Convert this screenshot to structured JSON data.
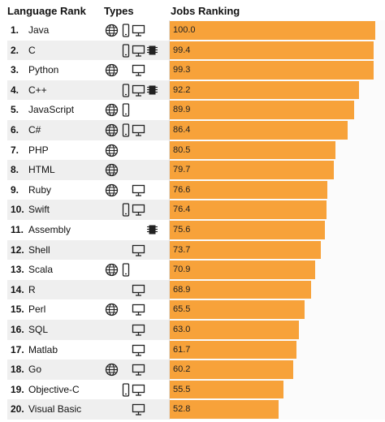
{
  "headers": {
    "language_rank": "Language Rank",
    "types": "Types",
    "jobs_ranking": "Jobs Ranking"
  },
  "colors": {
    "bar": "#f7a23a",
    "even_row": "#efefef"
  },
  "type_icons": {
    "web": "globe-icon",
    "mobile": "mobile-phone-icon",
    "enterprise": "desktop-monitor-icon",
    "embedded": "chip-icon"
  },
  "chart_data": {
    "type": "bar",
    "orientation": "horizontal",
    "categories": [
      "Java",
      "C",
      "Python",
      "C++",
      "JavaScript",
      "C#",
      "PHP",
      "HTML",
      "Ruby",
      "Swift",
      "Assembly",
      "Shell",
      "Scala",
      "R",
      "Perl",
      "SQL",
      "Matlab",
      "Go",
      "Objective-C",
      "Visual Basic"
    ],
    "series": [
      {
        "values": [
          100.0,
          99.4,
          99.3,
          92.2,
          89.9,
          86.4,
          80.5,
          79.7,
          76.6,
          76.4,
          75.6,
          73.7,
          70.9,
          68.9,
          65.5,
          63.0,
          61.7,
          60.2,
          55.5,
          52.8
        ]
      }
    ],
    "value_labels": [
      "100.0",
      "99.4",
      "99.3",
      "92.2",
      "89.9",
      "86.4",
      "80.5",
      "79.7",
      "76.6",
      "76.4",
      "75.6",
      "73.7",
      "70.9",
      "68.9",
      "65.5",
      "63.0",
      "61.7",
      "60.2",
      "55.5",
      "52.8"
    ],
    "xlim": [
      0,
      100
    ],
    "grid": false,
    "rows": [
      {
        "rank": "1.",
        "name": "Java",
        "types": [
          "web",
          "mobile",
          "enterprise"
        ]
      },
      {
        "rank": "2.",
        "name": "C",
        "types": [
          "mobile",
          "enterprise",
          "embedded"
        ]
      },
      {
        "rank": "3.",
        "name": "Python",
        "types": [
          "web",
          "enterprise"
        ]
      },
      {
        "rank": "4.",
        "name": "C++",
        "types": [
          "mobile",
          "enterprise",
          "embedded"
        ]
      },
      {
        "rank": "5.",
        "name": "JavaScript",
        "types": [
          "web",
          "mobile"
        ]
      },
      {
        "rank": "6.",
        "name": "C#",
        "types": [
          "web",
          "mobile",
          "enterprise"
        ]
      },
      {
        "rank": "7.",
        "name": "PHP",
        "types": [
          "web"
        ]
      },
      {
        "rank": "8.",
        "name": "HTML",
        "types": [
          "web"
        ]
      },
      {
        "rank": "9.",
        "name": "Ruby",
        "types": [
          "web",
          "enterprise"
        ]
      },
      {
        "rank": "10.",
        "name": "Swift",
        "types": [
          "mobile",
          "enterprise"
        ]
      },
      {
        "rank": "11.",
        "name": "Assembly",
        "types": [
          "embedded"
        ]
      },
      {
        "rank": "12.",
        "name": "Shell",
        "types": [
          "enterprise"
        ]
      },
      {
        "rank": "13.",
        "name": "Scala",
        "types": [
          "web",
          "mobile"
        ]
      },
      {
        "rank": "14.",
        "name": "R",
        "types": [
          "enterprise"
        ]
      },
      {
        "rank": "15.",
        "name": "Perl",
        "types": [
          "web",
          "enterprise"
        ]
      },
      {
        "rank": "16.",
        "name": "SQL",
        "types": [
          "enterprise"
        ]
      },
      {
        "rank": "17.",
        "name": "Matlab",
        "types": [
          "enterprise"
        ]
      },
      {
        "rank": "18.",
        "name": "Go",
        "types": [
          "web",
          "enterprise"
        ]
      },
      {
        "rank": "19.",
        "name": "Objective-C",
        "types": [
          "mobile",
          "enterprise"
        ]
      },
      {
        "rank": "20.",
        "name": "Visual Basic",
        "types": [
          "enterprise"
        ]
      }
    ]
  }
}
